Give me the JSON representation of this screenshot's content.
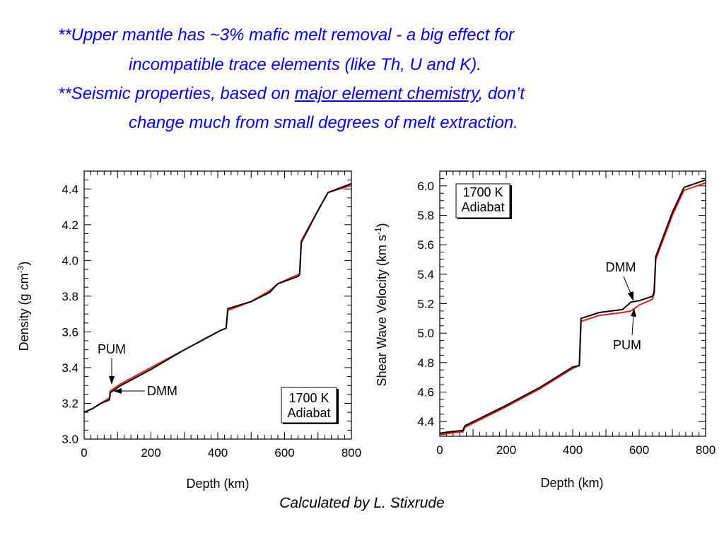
{
  "bullets": {
    "line1": "**Upper mantle has ~3% mafic melt removal - a big effect for",
    "line2": "incompatible trace elements (like Th, U and K).",
    "line3_pre": "**Seismic properties, based on ",
    "line3_link": "major element chemistry",
    "line3_post": ", don’t",
    "line4": "change much from small degrees of melt extraction."
  },
  "credit": "Calculated by L. Stixrude",
  "colors": {
    "text_blue": "#0000ee",
    "pum": "#e8201c",
    "dmm": "#000000"
  },
  "chart_data": [
    {
      "type": "line",
      "xlabel": "Depth (km)",
      "ylabel_main": "Density (g cm",
      "ylabel_sup": "-3",
      "ylabel_close": ")",
      "xlim": [
        0,
        800
      ],
      "ylim": [
        3.0,
        4.5
      ],
      "xticks": [
        "0",
        "200",
        "400",
        "600",
        "800"
      ],
      "yticks": [
        "3.0",
        "3.2",
        "3.4",
        "3.6",
        "3.8",
        "4.0",
        "4.2",
        "4.4"
      ],
      "xtick_values": [
        0,
        200,
        400,
        600,
        800
      ],
      "ytick_values": [
        3.0,
        3.2,
        3.4,
        3.6,
        3.8,
        4.0,
        4.2,
        4.4
      ],
      "inset_label": [
        "1700 K",
        "Adiabat"
      ],
      "annotations": [
        {
          "text": "PUM",
          "color": "#e8201c",
          "target": [
            78,
            3.25
          ]
        },
        {
          "text": "DMM",
          "color": "#000000",
          "target": [
            85,
            3.26
          ]
        }
      ],
      "series": [
        {
          "name": "PUM",
          "color": "#e8201c",
          "x": [
            0,
            25,
            50,
            76,
            78,
            110,
            200,
            300,
            410,
            425,
            430,
            500,
            555,
            580,
            640,
            645,
            650,
            700,
            730,
            800
          ],
          "y": [
            3.15,
            3.17,
            3.2,
            3.23,
            3.27,
            3.31,
            3.4,
            3.5,
            3.61,
            3.62,
            3.72,
            3.77,
            3.83,
            3.87,
            3.92,
            3.93,
            4.11,
            4.28,
            4.38,
            4.42
          ]
        },
        {
          "name": "DMM",
          "color": "#000000",
          "x": [
            0,
            25,
            50,
            76,
            78,
            110,
            200,
            300,
            410,
            425,
            430,
            500,
            555,
            580,
            640,
            645,
            650,
            700,
            730,
            800
          ],
          "y": [
            3.15,
            3.17,
            3.2,
            3.22,
            3.26,
            3.3,
            3.39,
            3.5,
            3.61,
            3.62,
            3.73,
            3.77,
            3.82,
            3.87,
            3.91,
            3.92,
            4.1,
            4.28,
            4.38,
            4.43
          ]
        }
      ]
    },
    {
      "type": "line",
      "xlabel": "Depth (km)",
      "ylabel_main": "Shear Wave Velocity (km s",
      "ylabel_sup": "-1",
      "ylabel_close": ")",
      "xlim": [
        0,
        800
      ],
      "ylim": [
        4.3,
        6.1
      ],
      "xticks": [
        "0",
        "200",
        "400",
        "600",
        "800"
      ],
      "yticks": [
        "4.4",
        "4.6",
        "4.8",
        "5.0",
        "5.2",
        "5.4",
        "5.6",
        "5.8",
        "6.0"
      ],
      "xtick_values": [
        0,
        200,
        400,
        600,
        800
      ],
      "ytick_values": [
        4.4,
        4.6,
        4.8,
        5.0,
        5.2,
        5.4,
        5.6,
        5.8,
        6.0
      ],
      "inset_label": [
        "1700 K",
        "Adiabat"
      ],
      "annotations": [
        {
          "text": "DMM",
          "color": "#000000",
          "target": [
            570,
            5.22
          ]
        },
        {
          "text": "PUM",
          "color": "#e8201c",
          "target": [
            578,
            5.17
          ]
        }
      ],
      "series": [
        {
          "name": "PUM",
          "color": "#e8201c",
          "x": [
            0,
            30,
            70,
            75,
            200,
            300,
            400,
            420,
            425,
            480,
            550,
            575,
            600,
            640,
            645,
            650,
            700,
            735,
            800
          ],
          "y": [
            4.31,
            4.32,
            4.33,
            4.36,
            4.5,
            4.62,
            4.76,
            4.78,
            5.08,
            5.12,
            5.14,
            5.15,
            5.19,
            5.23,
            5.27,
            5.5,
            5.8,
            5.97,
            6.02
          ]
        },
        {
          "name": "DMM",
          "color": "#000000",
          "x": [
            0,
            30,
            70,
            75,
            200,
            300,
            400,
            420,
            425,
            480,
            550,
            575,
            600,
            640,
            645,
            650,
            700,
            735,
            800
          ],
          "y": [
            4.32,
            4.33,
            4.34,
            4.37,
            4.51,
            4.63,
            4.77,
            4.78,
            5.1,
            5.14,
            5.16,
            5.21,
            5.22,
            5.25,
            5.28,
            5.52,
            5.82,
            5.99,
            6.04
          ]
        }
      ]
    }
  ]
}
